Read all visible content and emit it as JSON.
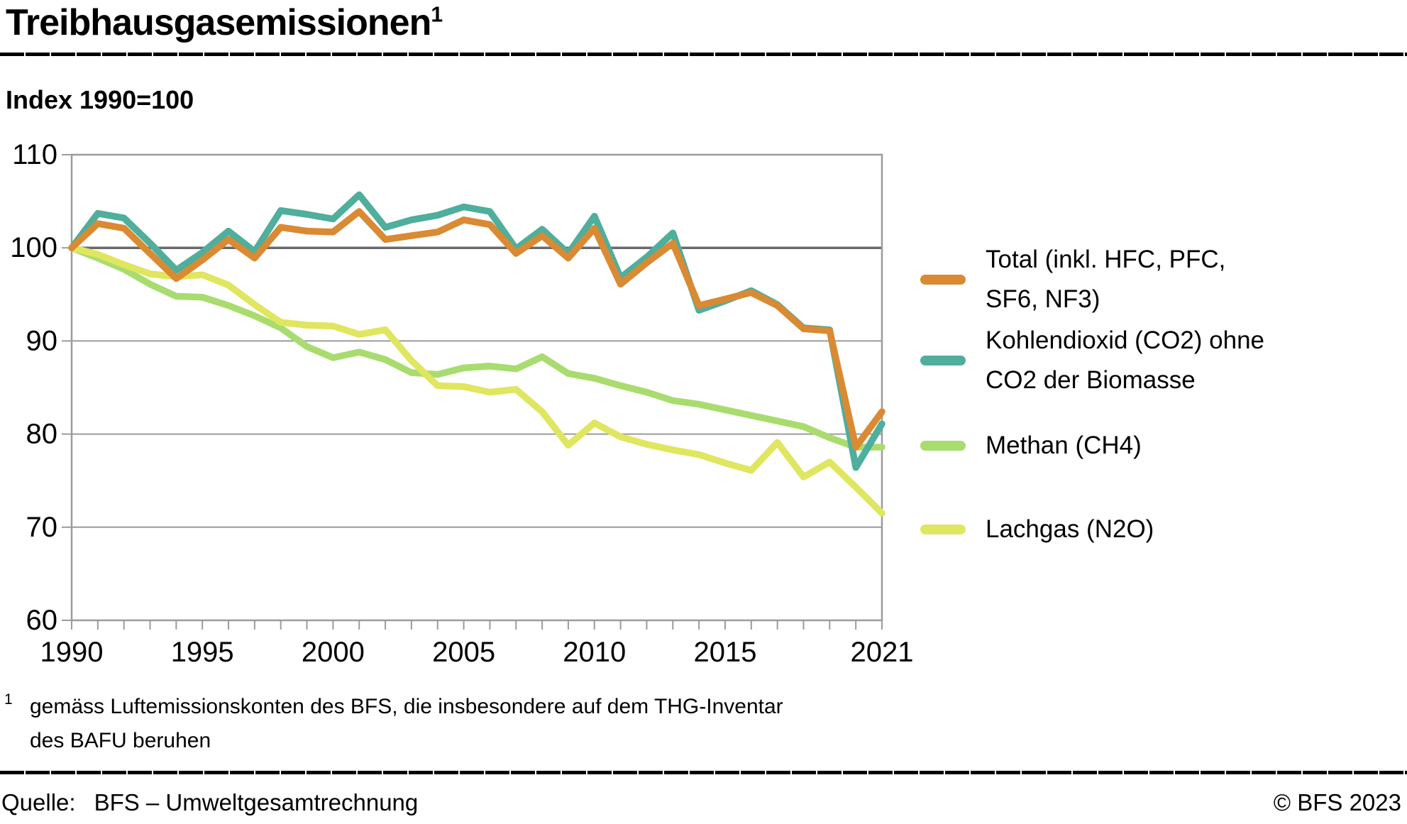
{
  "header": {
    "title": "Treibhausgasemissionen",
    "title_superscript": "1",
    "subtitle": "Index 1990=100"
  },
  "chart_data": {
    "type": "line",
    "title": "Treibhausgasemissionen, Index 1990=100",
    "xlabel": "",
    "ylabel": "Index 1990=100",
    "xlim": [
      1990,
      2021
    ],
    "ylim": [
      60,
      110
    ],
    "grid": "horizontal",
    "baseline_value": 100,
    "legend_position": "right",
    "x": [
      1990,
      1991,
      1992,
      1993,
      1994,
      1995,
      1996,
      1997,
      1998,
      1999,
      2000,
      2001,
      2002,
      2003,
      2004,
      2005,
      2006,
      2007,
      2008,
      2009,
      2010,
      2011,
      2012,
      2013,
      2014,
      2015,
      2016,
      2017,
      2018,
      2019,
      2020,
      2021
    ],
    "x_tick_years": [
      1990,
      1995,
      2000,
      2005,
      2010,
      2015,
      2021
    ],
    "x_tick_labels": [
      "1990",
      "1995",
      "2000",
      "2005",
      "2010",
      "2015",
      "2021"
    ],
    "y_ticks": [
      110,
      100,
      90,
      80,
      70,
      60
    ],
    "series": [
      {
        "name": "Total (inkl. HFC, PFC, SF6, NF3)",
        "label_lines": [
          "Total (inkl. HFC, PFC,",
          "SF6, NF3)"
        ],
        "color": "#D98A33",
        "values": [
          100,
          102.6,
          102.1,
          99.4,
          96.7,
          98.7,
          100.9,
          98.9,
          102.2,
          101.8,
          101.7,
          103.9,
          100.9,
          101.3,
          101.7,
          103.0,
          102.5,
          99.4,
          101.3,
          98.9,
          102.1,
          96.1,
          98.4,
          100.5,
          93.8,
          94.5,
          95.2,
          93.8,
          91.3,
          91.1,
          78.6,
          82.4
        ]
      },
      {
        "name": "Kohlendioxid (CO2) ohne CO2 der Biomasse",
        "label_lines": [
          "Kohlendioxid (CO2) ohne",
          "CO2 der Biomasse"
        ],
        "color": "#4FAE9C",
        "values": [
          100,
          103.7,
          103.2,
          100.5,
          97.6,
          99.5,
          101.8,
          99.6,
          104.0,
          103.6,
          103.1,
          105.7,
          102.2,
          103.0,
          103.5,
          104.4,
          103.9,
          99.9,
          102.0,
          99.4,
          103.4,
          96.8,
          99.0,
          101.6,
          93.3,
          94.3,
          95.4,
          93.9,
          91.4,
          91.2,
          76.4,
          81.1
        ]
      },
      {
        "name": "Methan (CH4)",
        "label_lines": [
          "Methan (CH4)"
        ],
        "color": "#A9DC6F",
        "values": [
          100,
          98.9,
          97.7,
          96.1,
          94.8,
          94.7,
          93.8,
          92.7,
          91.4,
          89.4,
          88.2,
          88.8,
          88.0,
          86.6,
          86.4,
          87.1,
          87.3,
          87.0,
          88.3,
          86.5,
          86.0,
          85.2,
          84.5,
          83.6,
          83.2,
          82.6,
          82.0,
          81.4,
          80.8,
          79.6,
          78.6,
          78.6
        ]
      },
      {
        "name": "Lachgas (N2O)",
        "label_lines": [
          "Lachgas (N2O)"
        ],
        "color": "#E0E65F",
        "values": [
          100,
          99.3,
          98.2,
          97.2,
          96.9,
          97.1,
          96.0,
          93.9,
          92.0,
          91.7,
          91.6,
          90.7,
          91.2,
          87.9,
          85.2,
          85.1,
          84.5,
          84.8,
          82.4,
          78.8,
          81.2,
          79.7,
          78.9,
          78.3,
          77.8,
          76.9,
          76.1,
          79.1,
          75.4,
          77.0,
          74.3,
          71.5
        ]
      }
    ],
    "colors": {
      "grid": "#9B9B9B",
      "baseline_grid": "#6A6A6A",
      "axis": "#9B9B9B",
      "tick_text": "#000000"
    },
    "z_order": [
      2,
      3,
      1,
      0
    ]
  },
  "footnote": {
    "marker": "1",
    "line1": "gemäss Luftemissionskonten des BFS, die insbesondere auf dem THG-Inventar",
    "line2": "des BAFU beruhen"
  },
  "footer": {
    "source_label": "Quelle:",
    "source_value": "BFS – Umweltgesamtrechnung",
    "copyright": "© BFS 2023"
  }
}
